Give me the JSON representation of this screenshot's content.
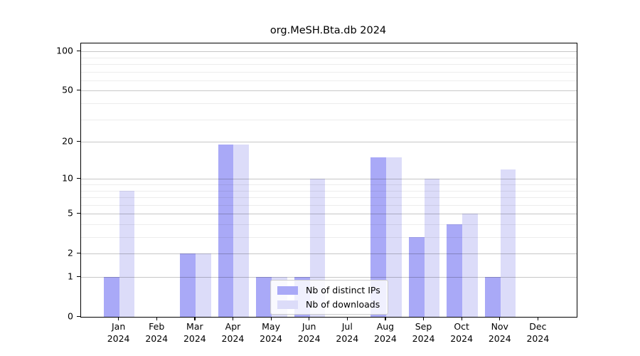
{
  "title": "org.MeSH.Bta.db 2024",
  "chart_data": {
    "type": "bar",
    "title": "org.MeSH.Bta.db 2024",
    "categories": [
      "Jan 2024",
      "Feb 2024",
      "Mar 2024",
      "Apr 2024",
      "May 2024",
      "Jun 2024",
      "Jul 2024",
      "Aug 2024",
      "Sep 2024",
      "Oct 2024",
      "Nov 2024",
      "Dec 2024"
    ],
    "series": [
      {
        "name": "Nb of distinct IPs",
        "color": "#a9a9f7",
        "values": [
          1,
          0,
          2,
          19,
          1,
          1,
          0,
          15,
          3,
          4,
          1,
          0
        ]
      },
      {
        "name": "Nb of downloads",
        "color": "#dcdcf9",
        "values": [
          8,
          0,
          2,
          19,
          1,
          10,
          0,
          15,
          10,
          5,
          12,
          0
        ]
      }
    ],
    "xlabel": "",
    "ylabel": "",
    "yscale": "log1p",
    "ylim": [
      0,
      115
    ],
    "y_major_ticks": [
      0,
      1,
      2,
      5,
      10,
      20,
      50,
      100
    ],
    "y_minor_gridlines": [
      3,
      4,
      6,
      7,
      8,
      9,
      30,
      40,
      60,
      70,
      80,
      90
    ],
    "grid": "horizontal",
    "legend_position": "lower-center-inside"
  },
  "colors": {
    "ips_bar": "#a9a9f7",
    "downloads_bar": "#dcdcf9",
    "major_grid": "#c8c8c8",
    "minor_grid": "#ececec",
    "axis": "#000000"
  }
}
